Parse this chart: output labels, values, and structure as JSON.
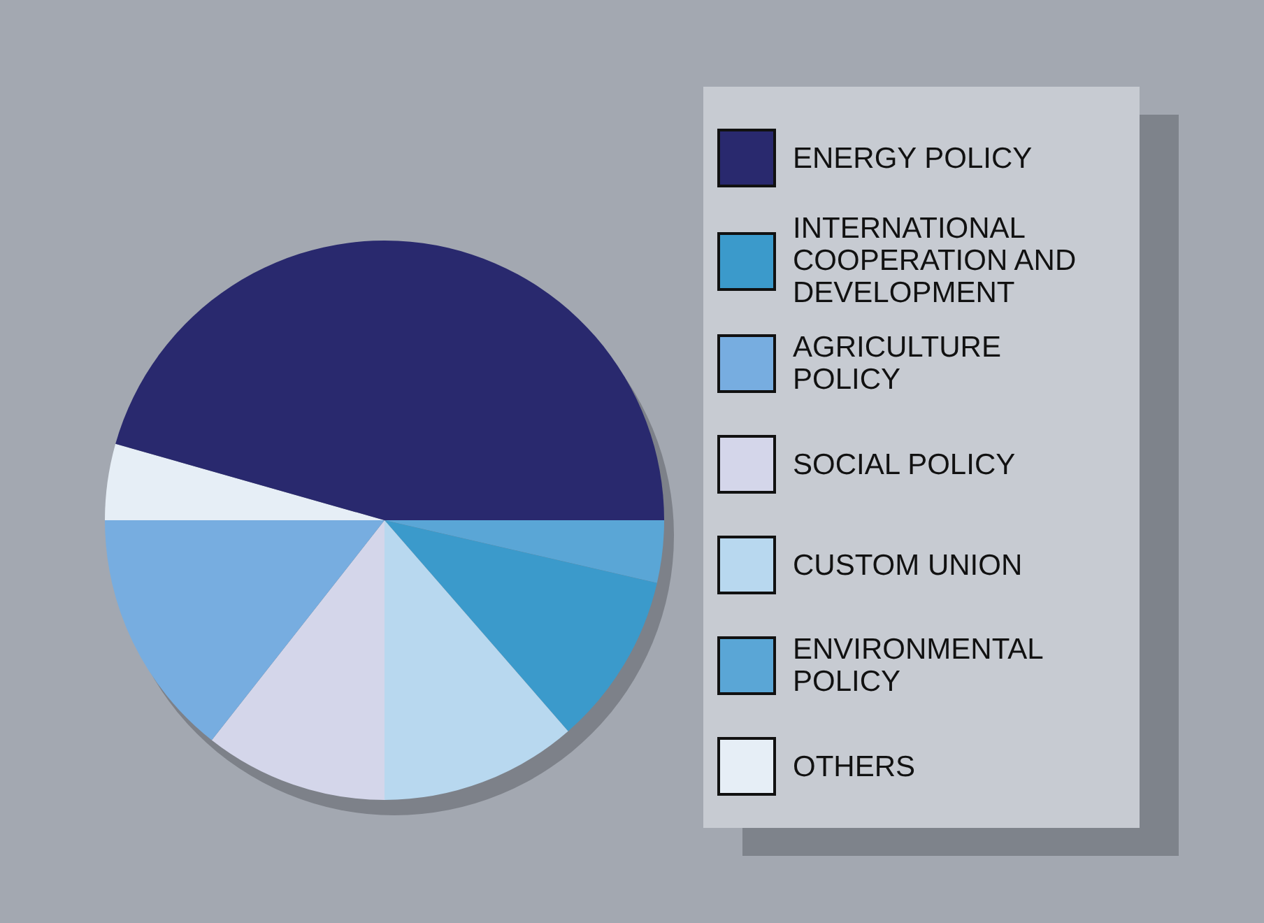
{
  "chart_data": {
    "type": "pie",
    "categories": [
      "ENERGY POLICY",
      "INTERNATIONAL COOPERATION AND DEVELOPMENT",
      "AGRICULTURE POLICY",
      "SOCIAL POLICY",
      "CUSTOM UNION",
      "ENVIRONMENTAL POLICY",
      "OTHERS"
    ],
    "values": [
      45.6,
      10,
      14.4,
      10.6,
      11.4,
      3.6,
      4.4
    ],
    "colors": [
      "#29296e",
      "#3b9acb",
      "#77ade0",
      "#d4d6ea",
      "#b8d8ef",
      "#5aa6d6",
      "#e6eef6"
    ],
    "legend": "right"
  }
}
